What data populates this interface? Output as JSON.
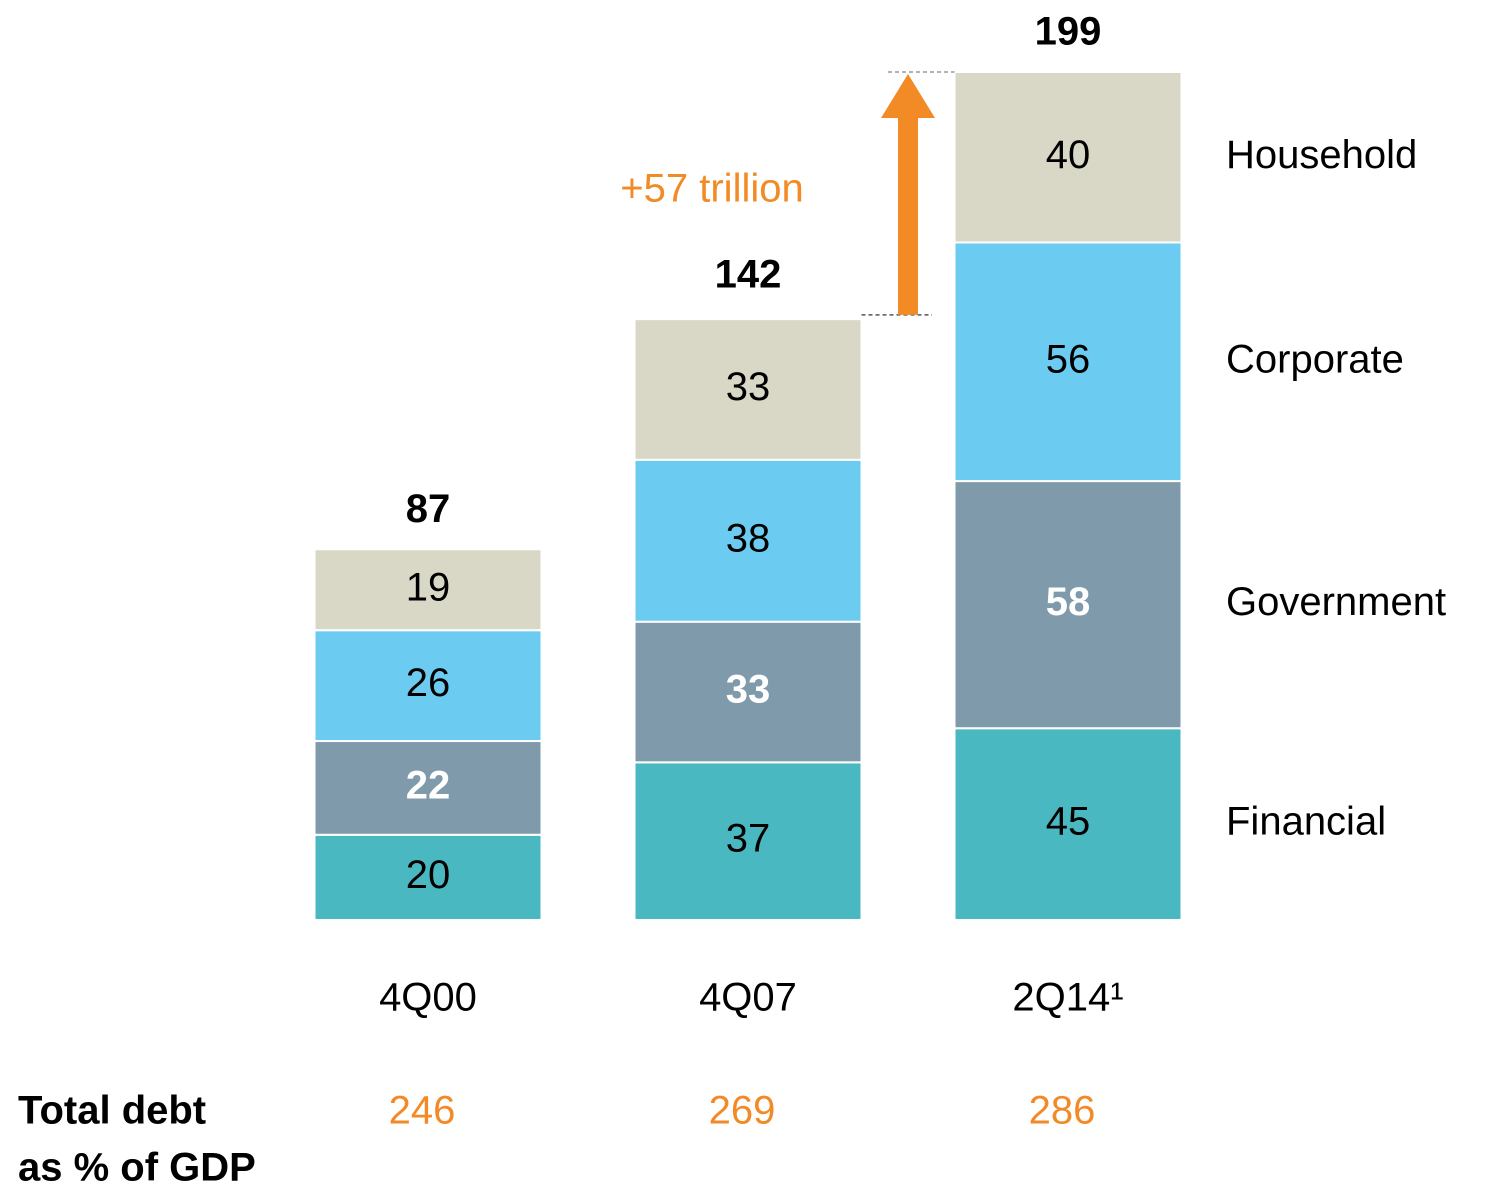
{
  "chart_data": {
    "type": "stacked_bar",
    "categories": [
      "4Q00",
      "4Q07",
      "2Q14¹"
    ],
    "series": [
      {
        "name": "Financial",
        "color": "#4ab8c1",
        "label_color": "#000000",
        "values": [
          20,
          37,
          45
        ]
      },
      {
        "name": "Government",
        "color": "#7f9aab",
        "label_color": "#ffffff",
        "values": [
          22,
          33,
          58
        ]
      },
      {
        "name": "Corporate",
        "color": "#6ccbf0",
        "label_color": "#000000",
        "values": [
          26,
          38,
          56
        ]
      },
      {
        "name": "Household",
        "color": "#d9d8c6",
        "label_color": "#000000",
        "values": [
          19,
          33,
          40
        ]
      }
    ],
    "totals": [
      87,
      142,
      199
    ],
    "annotation": "+57 trillion",
    "annotation_color": "#f28a25",
    "row_label": [
      "Total debt",
      "as % of GDP"
    ],
    "row_values": [
      246,
      269,
      286
    ],
    "row_color": "#f28a25"
  }
}
